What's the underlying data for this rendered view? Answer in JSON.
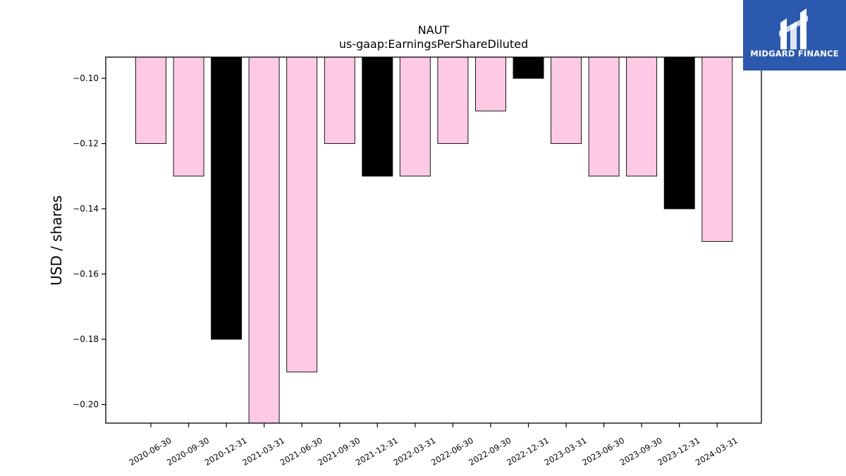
{
  "chart_data": {
    "type": "bar",
    "title": "NAUT",
    "subtitle": "us-gaap:EarningsPerShareDiluted",
    "xlabel": "",
    "ylabel": "USD / shares",
    "ylim": [
      -0.2057,
      -0.0935
    ],
    "yticks": [
      -0.1,
      -0.12,
      -0.14,
      -0.16,
      -0.18,
      -0.2
    ],
    "ytick_labels": [
      "−0.10",
      "−0.12",
      "−0.14",
      "−0.16",
      "−0.18",
      "−0.20"
    ],
    "grid": false,
    "categories": [
      "2020-06-30",
      "2020-09-30",
      "2020-12-31",
      "2021-03-31",
      "2021-06-30",
      "2021-09-30",
      "2021-12-31",
      "2022-03-31",
      "2022-06-30",
      "2022-09-30",
      "2022-12-31",
      "2023-03-31",
      "2023-06-30",
      "2023-09-30",
      "2023-12-31",
      "2024-03-31"
    ],
    "values": [
      -0.12,
      -0.13,
      -0.18,
      -0.21,
      -0.19,
      -0.12,
      -0.13,
      -0.13,
      -0.12,
      -0.11,
      -0.1,
      -0.12,
      -0.13,
      -0.13,
      -0.14,
      -0.15
    ],
    "bar_colors": [
      "#fdc9e4",
      "#fdc9e4",
      "#000000",
      "#fdc9e4",
      "#fdc9e4",
      "#fdc9e4",
      "#000000",
      "#fdc9e4",
      "#fdc9e4",
      "#fdc9e4",
      "#000000",
      "#fdc9e4",
      "#fdc9e4",
      "#fdc9e4",
      "#000000",
      "#fdc9e4"
    ]
  },
  "logo": {
    "text": "MIDGARD FINANCE",
    "background": "#2b59ad"
  }
}
